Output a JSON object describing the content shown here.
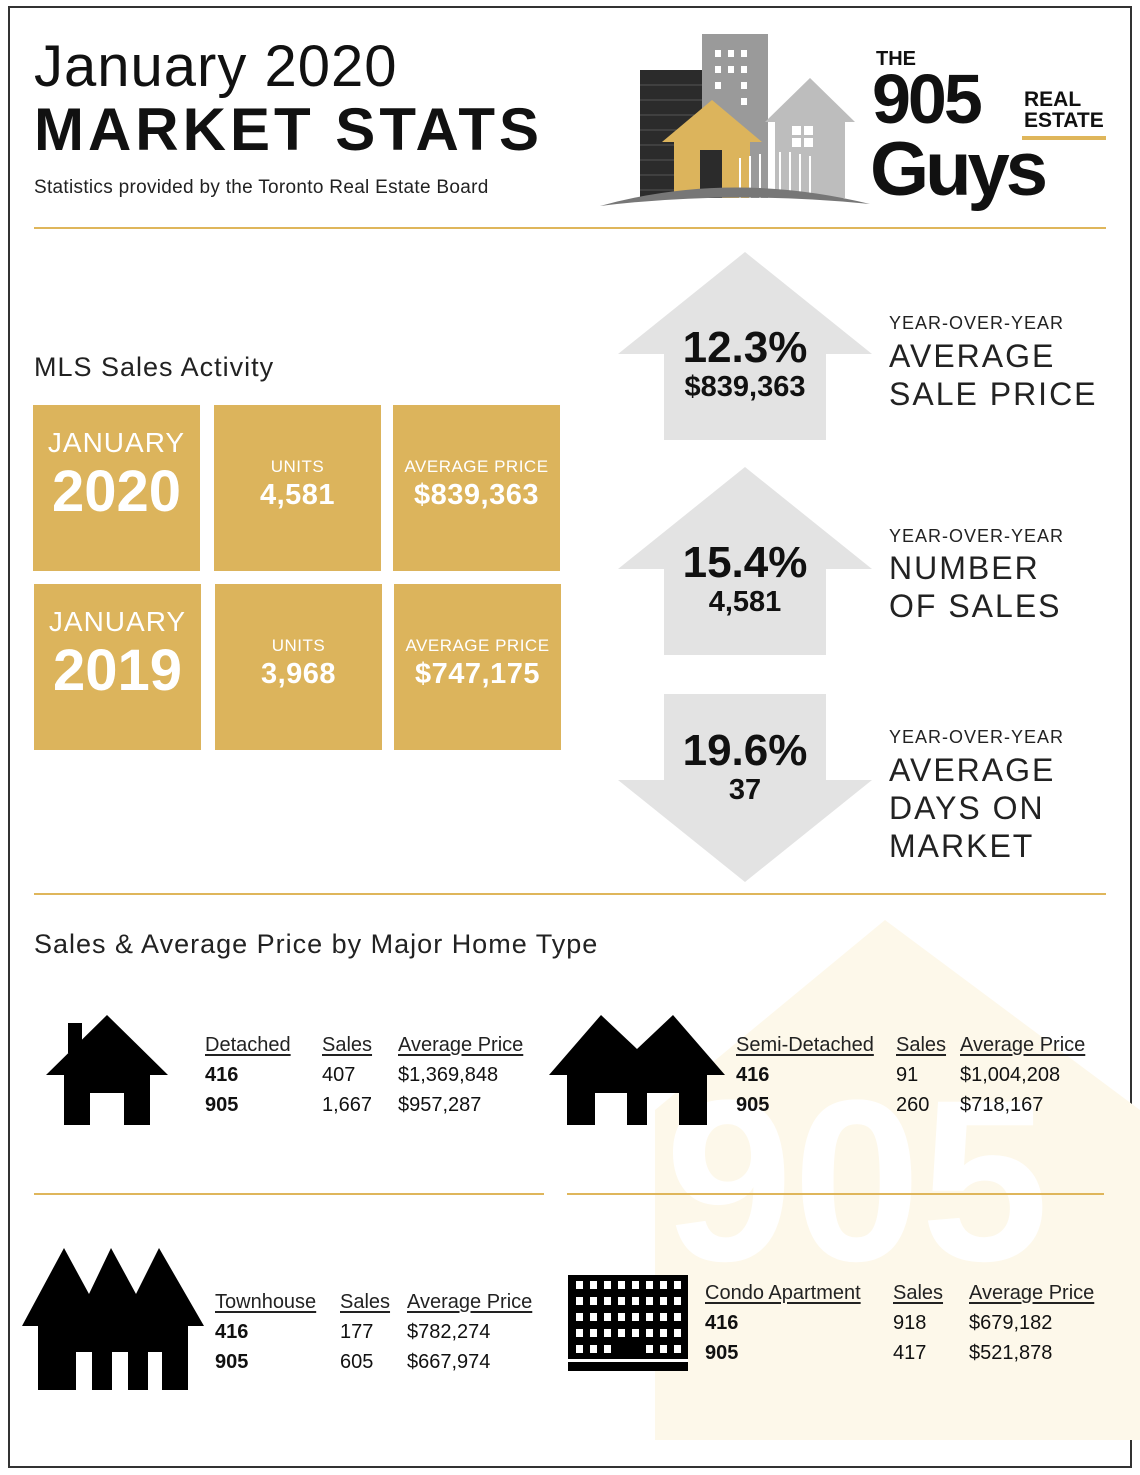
{
  "header": {
    "title_line1": "January 2020",
    "title_line2": "MARKET STATS",
    "subtitle": "Statistics provided by the Toronto Real Estate Board"
  },
  "logo": {
    "the": "THE",
    "number": "905",
    "real": "REAL",
    "estate": "ESTATE",
    "guys": "Guys"
  },
  "mls": {
    "heading": "MLS Sales Activity",
    "rows": [
      {
        "month": "JANUARY",
        "year": "2020",
        "units_label": "UNITS",
        "units": "4,581",
        "avg_label": "AVERAGE PRICE",
        "avg": "$839,363"
      },
      {
        "month": "JANUARY",
        "year": "2019",
        "units_label": "UNITS",
        "units": "3,968",
        "avg_label": "AVERAGE PRICE",
        "avg": "$747,175"
      }
    ]
  },
  "yoy": [
    {
      "direction": "up",
      "pct": "12.3%",
      "value": "$839,363",
      "small": "YEAR-OVER-YEAR",
      "line1": "AVERAGE",
      "line2": "SALE PRICE",
      "line3": ""
    },
    {
      "direction": "up",
      "pct": "15.4%",
      "value": "4,581",
      "small": "YEAR-OVER-YEAR",
      "line1": "NUMBER",
      "line2": "OF SALES",
      "line3": ""
    },
    {
      "direction": "down",
      "pct": "19.6%",
      "value": "37",
      "small": "YEAR-OVER-YEAR",
      "line1": "AVERAGE",
      "line2": "DAYS ON",
      "line3": "MARKET"
    }
  ],
  "home_types": {
    "heading": "Sales & Average Price by Major Home Type",
    "detached": {
      "type": "Detached",
      "sales_h": "Sales",
      "price_h": "Average Price",
      "r1": [
        "416",
        "407",
        "$1,369,848"
      ],
      "r2": [
        "905",
        "1,667",
        "$957,287"
      ]
    },
    "semi": {
      "type": "Semi-Detached",
      "sales_h": "Sales",
      "price_h": "Average Price",
      "r1": [
        "416",
        "91",
        "$1,004,208"
      ],
      "r2": [
        "905",
        "260",
        "$718,167"
      ]
    },
    "town": {
      "type": "Townhouse",
      "sales_h": "Sales",
      "price_h": "Average Price",
      "r1": [
        "416",
        "177",
        "$782,274"
      ],
      "r2": [
        "905",
        "605",
        "$667,974"
      ]
    },
    "condo": {
      "type": "Condo Apartment",
      "sales_h": "Sales",
      "price_h": "Average Price",
      "r1": [
        "416",
        "918",
        "$679,182"
      ],
      "r2": [
        "905",
        "417",
        "$521,878"
      ]
    }
  },
  "watermark": "905",
  "colors": {
    "gold": "#dcb45c",
    "arrow": "#e3e3e3",
    "text": "#1a1a1a"
  }
}
